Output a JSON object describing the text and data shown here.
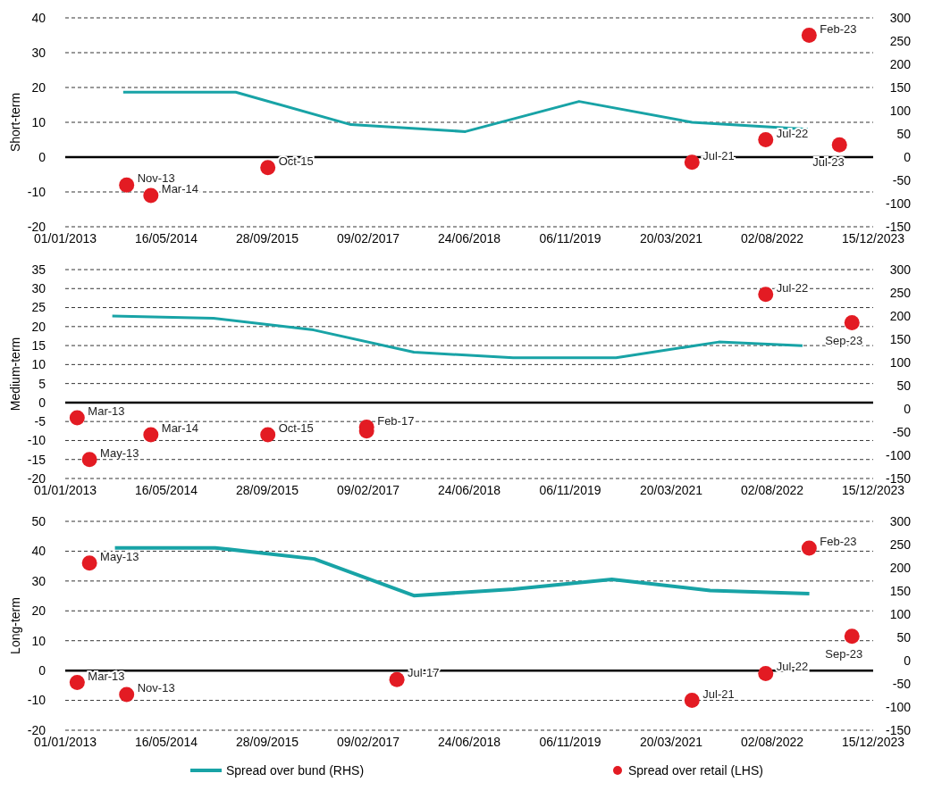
{
  "chart_data": [
    {
      "type": "line",
      "ylabel": "Short-term",
      "xlim": [
        "2013-01-01",
        "2023-12-15"
      ],
      "xticks": [
        {
          "value": "2013-01-01",
          "label": "01/01/2013"
        },
        {
          "value": "2014-05-16",
          "label": "16/05/2014"
        },
        {
          "value": "2015-09-28",
          "label": "28/09/2015"
        },
        {
          "value": "2017-02-09",
          "label": "09/02/2017"
        },
        {
          "value": "2018-06-24",
          "label": "24/06/2018"
        },
        {
          "value": "2019-11-06",
          "label": "06/11/2019"
        },
        {
          "value": "2021-03-20",
          "label": "20/03/2021"
        },
        {
          "value": "2022-08-02",
          "label": "02/08/2022"
        },
        {
          "value": "2023-12-15",
          "label": "15/12/2023"
        }
      ],
      "ylim": [
        -20,
        40
      ],
      "yticks": [
        -20,
        -10,
        0,
        10,
        20,
        30,
        40
      ],
      "y2lim": [
        -150,
        300
      ],
      "y2ticks": [
        -150,
        -100,
        -50,
        0,
        50,
        100,
        150,
        200,
        250,
        300
      ],
      "grid": "y",
      "legend": false,
      "series": [
        {
          "axis": "y2",
          "color": "#18a3a6",
          "line_style": "solid",
          "x": [
            "2013-10-15",
            "2015-04-25",
            "2016-11-15",
            "2018-06-05",
            "2019-12-20",
            "2021-07-01",
            "2023-01-25"
          ],
          "values": [
            140,
            140,
            70,
            55,
            120,
            75,
            60
          ]
        },
        {
          "type": "scatter",
          "color": "#e31b23",
          "marker": "circle",
          "x": [
            "2013-11",
            "2014-03",
            "2015-10",
            "2021-07",
            "2022-07",
            "2023-02",
            "2023-07"
          ],
          "values": [
            -8,
            -11,
            -3,
            -1.5,
            5,
            35,
            3.5
          ]
        }
      ],
      "annotations": [
        {
          "text": "Nov-13",
          "x": "2013-11",
          "y": -8
        },
        {
          "text": "Mar-14",
          "x": "2014-03",
          "y": -11
        },
        {
          "text": "Oct-15",
          "x": "2015-10",
          "y": -3
        },
        {
          "text": "Jul-21",
          "x": "2021-07",
          "y": -1.5
        },
        {
          "text": "Jul-22",
          "x": "2022-07",
          "y": 5
        },
        {
          "text": "Feb-23",
          "x": "2023-02",
          "y": 35
        },
        {
          "text": "Jul-23",
          "x": "2023-07",
          "y": 3.5
        }
      ]
    },
    {
      "type": "line",
      "ylabel": "Medium-term",
      "xlim": [
        "2013-01-01",
        "2023-12-15"
      ],
      "xticks": [
        {
          "value": "2013-01-01",
          "label": "01/01/2013"
        },
        {
          "value": "2014-05-16",
          "label": "16/05/2014"
        },
        {
          "value": "2015-09-28",
          "label": "28/09/2015"
        },
        {
          "value": "2017-02-09",
          "label": "09/02/2017"
        },
        {
          "value": "2018-06-24",
          "label": "24/06/2018"
        },
        {
          "value": "2019-11-06",
          "label": "06/11/2019"
        },
        {
          "value": "2021-03-20",
          "label": "20/03/2021"
        },
        {
          "value": "2022-08-02",
          "label": "02/08/2022"
        },
        {
          "value": "2023-12-15",
          "label": "15/12/2023"
        }
      ],
      "ylim": [
        -20,
        35
      ],
      "yticks": [
        -20,
        -15,
        -10,
        -5,
        0,
        5,
        10,
        15,
        20,
        25,
        30,
        35
      ],
      "y2lim": [
        -150,
        300
      ],
      "y2ticks": [
        -150,
        -100,
        -50,
        0,
        50,
        100,
        150,
        200,
        250,
        300
      ],
      "grid": "y",
      "legend": false,
      "series": [
        {
          "axis": "y2",
          "color": "#18a3a6",
          "line_style": "solid",
          "x": [
            "2013-08-22",
            "2015-01-05",
            "2016-05-14",
            "2017-09-23",
            "2019-01-28",
            "2020-06-20",
            "2021-11-11",
            "2022-12-30"
          ],
          "values": [
            200,
            195,
            170,
            122,
            110,
            110,
            144,
            136
          ]
        },
        {
          "type": "scatter",
          "color": "#e31b23",
          "marker": "circle",
          "x": [
            "2013-03",
            "2013-05",
            "2014-03",
            "2015-10",
            "2017-02",
            "2017-02",
            "2022-07",
            "2023-09"
          ],
          "values": [
            -4,
            -15,
            -8.5,
            -8.5,
            -6.5,
            -7.5,
            28.5,
            21
          ]
        }
      ],
      "annotations": [
        {
          "text": "Mar-13",
          "x": "2013-03",
          "y": -4
        },
        {
          "text": "May-13",
          "x": "2013-05",
          "y": -15
        },
        {
          "text": "Mar-14",
          "x": "2014-03",
          "y": -8.5
        },
        {
          "text": "Oct-15",
          "x": "2015-10",
          "y": -8.5
        },
        {
          "text": "Feb-17",
          "x": "2017-02",
          "y": -6.5
        },
        {
          "text": "Jul-22",
          "x": "2022-07",
          "y": 28.5
        },
        {
          "text": "Sep-23",
          "x": "2023-09",
          "y": 21
        }
      ]
    },
    {
      "type": "line",
      "ylabel": "Long-term",
      "xlim": [
        "2013-01-01",
        "2023-12-15"
      ],
      "xticks": [
        {
          "value": "2013-01-01",
          "label": "01/01/2013"
        },
        {
          "value": "2014-05-16",
          "label": "16/05/2014"
        },
        {
          "value": "2015-09-28",
          "label": "28/09/2015"
        },
        {
          "value": "2017-02-09",
          "label": "09/02/2017"
        },
        {
          "value": "2018-06-24",
          "label": "24/06/2018"
        },
        {
          "value": "2019-11-06",
          "label": "06/11/2019"
        },
        {
          "value": "2021-03-20",
          "label": "20/03/2021"
        },
        {
          "value": "2022-08-02",
          "label": "02/08/2022"
        },
        {
          "value": "2023-12-15",
          "label": "15/12/2023"
        }
      ],
      "ylim": [
        -20,
        50
      ],
      "yticks": [
        -20,
        -10,
        0,
        10,
        20,
        30,
        40,
        50
      ],
      "y2lim": [
        -150,
        300
      ],
      "y2ticks": [
        -150,
        -100,
        -50,
        0,
        50,
        100,
        150,
        200,
        250,
        300
      ],
      "grid": "y",
      "legend": "bottom",
      "series": [
        {
          "name": "Spread over bund (RHS)",
          "axis": "y2",
          "color": "#18a3a6",
          "line_style": "solid",
          "x": [
            "2013-09-04",
            "2015-01-13",
            "2016-05-18",
            "2017-09-23",
            "2019-01-28",
            "2020-05-30",
            "2021-09-29",
            "2023-02-02"
          ],
          "values": [
            243,
            243,
            219,
            140,
            154,
            175,
            151,
            144
          ]
        },
        {
          "type": "scatter",
          "name": "Spread over retail (LHS)",
          "color": "#e31b23",
          "marker": "circle",
          "x": [
            "2013-03",
            "2013-05",
            "2013-11",
            "2017-07",
            "2021-07",
            "2022-07",
            "2023-02",
            "2023-09"
          ],
          "values": [
            -4,
            36,
            -8,
            -3,
            -10,
            -1,
            41,
            11.5
          ]
        }
      ],
      "annotations": [
        {
          "text": "Mar-13",
          "x": "2013-03",
          "y": -4
        },
        {
          "text": "May-13",
          "x": "2013-05",
          "y": 36
        },
        {
          "text": "Nov-13",
          "x": "2013-11",
          "y": -8
        },
        {
          "text": "Jul-17",
          "x": "2017-07",
          "y": -3
        },
        {
          "text": "Jul-21",
          "x": "2021-07",
          "y": -10
        },
        {
          "text": "Jul-22",
          "x": "2022-07",
          "y": -1
        },
        {
          "text": "Feb-23",
          "x": "2023-02",
          "y": 41
        },
        {
          "text": "Sep-23",
          "x": "2023-09",
          "y": 11.5
        }
      ]
    }
  ]
}
